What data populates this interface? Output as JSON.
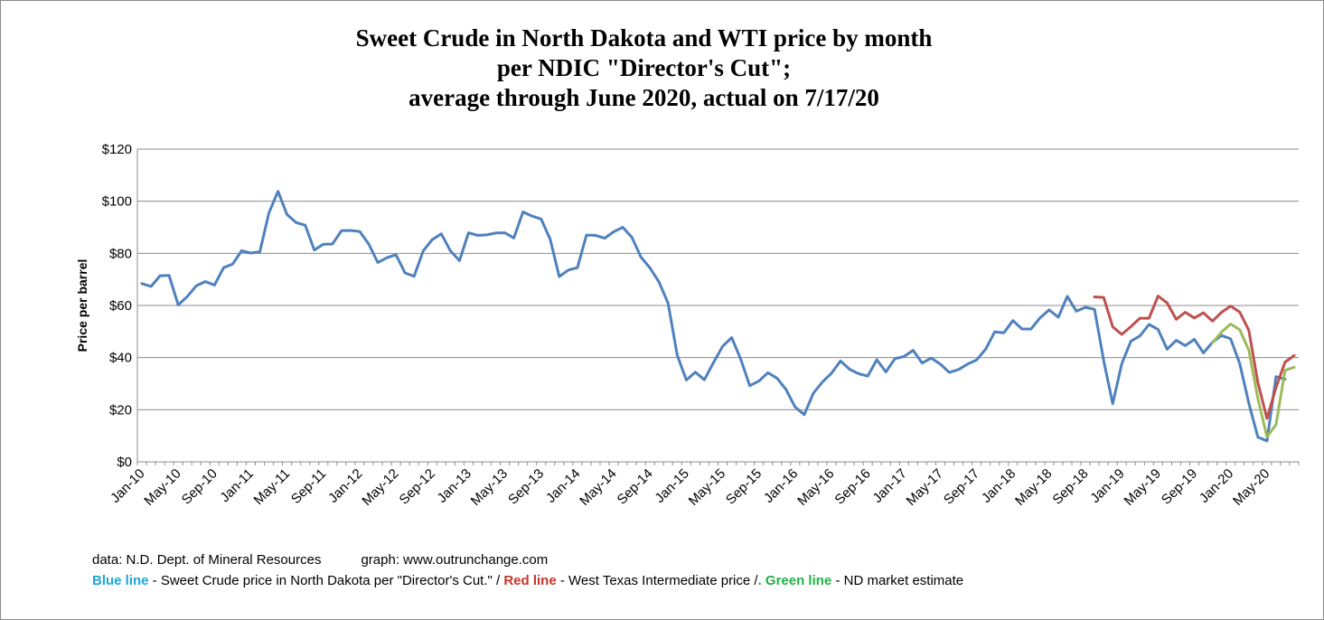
{
  "chart_data": {
    "type": "line",
    "title_lines": [
      "Sweet Crude in North Dakota and WTI price by month",
      "per NDIC \"Director's Cut\";",
      "average through June 2020, actual on 7/17/20"
    ],
    "ylabel": "Price per barrel",
    "xlabel": "",
    "ylim": [
      0,
      120
    ],
    "y_ticks": [
      "$0",
      "$20",
      "$40",
      "$60",
      "$80",
      "$100",
      "$120"
    ],
    "grid": true,
    "legend": "none",
    "x_start": "Jan-10",
    "x_tick_labels": [
      "Jan-10",
      "May-10",
      "Sep-10",
      "Jan-11",
      "May-11",
      "Sep-11",
      "Jan-12",
      "May-12",
      "Sep-12",
      "Jan-13",
      "May-13",
      "Sep-13",
      "Jan-14",
      "May-14",
      "Sep-14",
      "Jan-15",
      "May-15",
      "Sep-15",
      "Jan-16",
      "May-16",
      "Sep-16",
      "Jan-17",
      "May-17",
      "Sep-17",
      "Jan-18",
      "May-18",
      "Sep-18",
      "Jan-19",
      "May-19",
      "Sep-19",
      "Jan-20",
      "May-20"
    ],
    "series": [
      {
        "color": "#4f81bd",
        "start": "Jan-10",
        "values": [
          68.4,
          67.3,
          71.4,
          71.5,
          60.2,
          63.4,
          67.6,
          69.2,
          67.8,
          74.5,
          75.9,
          81.0,
          80.1,
          80.6,
          95.6,
          103.8,
          94.9,
          91.8,
          90.8,
          81.3,
          83.5,
          83.6,
          88.7,
          88.8,
          88.4,
          83.6,
          76.5,
          78.3,
          79.5,
          72.5,
          71.2,
          80.9,
          85.3,
          87.5,
          81.0,
          77.2,
          87.9,
          86.9,
          87.1,
          87.8,
          87.9,
          85.9,
          95.9,
          94.3,
          93.2,
          85.4,
          71.1,
          73.6,
          74.5,
          87.0,
          86.9,
          85.8,
          88.3,
          90.0,
          86.2,
          78.6,
          74.4,
          69.0,
          60.8,
          41.0,
          31.4,
          34.4,
          31.5,
          38.1,
          44.3,
          47.7,
          39.4,
          29.2,
          31.0,
          34.2,
          32.1,
          27.7,
          21.0,
          18.1,
          26.3,
          30.6,
          34.0,
          38.7,
          35.5,
          33.8,
          32.9,
          39.2,
          34.5,
          39.6,
          40.4,
          42.8,
          37.9,
          39.8,
          37.5,
          34.3,
          35.4,
          37.5,
          39.1,
          43.3,
          49.9,
          49.5,
          54.2,
          51.0,
          51.0,
          55.3,
          58.3,
          55.5,
          63.5,
          57.8,
          59.3,
          58.5,
          38.9,
          22.3,
          37.6,
          46.3,
          48.3,
          52.7,
          50.8,
          43.2,
          46.6,
          44.6,
          47.0,
          41.8,
          45.9,
          48.5,
          47.2,
          37.8,
          22.5,
          9.5,
          8.0,
          32.7,
          31.7
        ]
      },
      {
        "color": "#c0504d",
        "start": "Oct-18",
        "values": [
          63.3,
          63.1,
          51.8,
          48.9,
          51.9,
          55.1,
          55.1,
          63.6,
          61.0,
          54.7,
          57.4,
          55.2,
          57.2,
          54.0,
          57.4,
          59.8,
          57.5,
          50.5,
          30.5,
          16.6,
          28.5,
          38.3,
          40.8
        ]
      },
      {
        "color": "#9bbb59",
        "start": "Nov-19",
        "values": [
          45.7,
          49.8,
          52.9,
          50.7,
          42.9,
          24.3,
          9.6,
          14.3,
          35.1,
          36.3
        ]
      }
    ]
  },
  "notes": {
    "source": "data: N.D. Dept. of Mineral Resources",
    "graph": "graph:  www.outrunchange.com",
    "blue_label": "Blue line",
    "blue_text": " - Sweet Crude price in North Dakota per \"Director's Cut.\"  /  ",
    "red_label": "Red line",
    "red_text": " - West Texas Intermediate price  /",
    "dot": ".",
    "green_label": " Green line",
    "green_text": " - ND market estimate"
  }
}
